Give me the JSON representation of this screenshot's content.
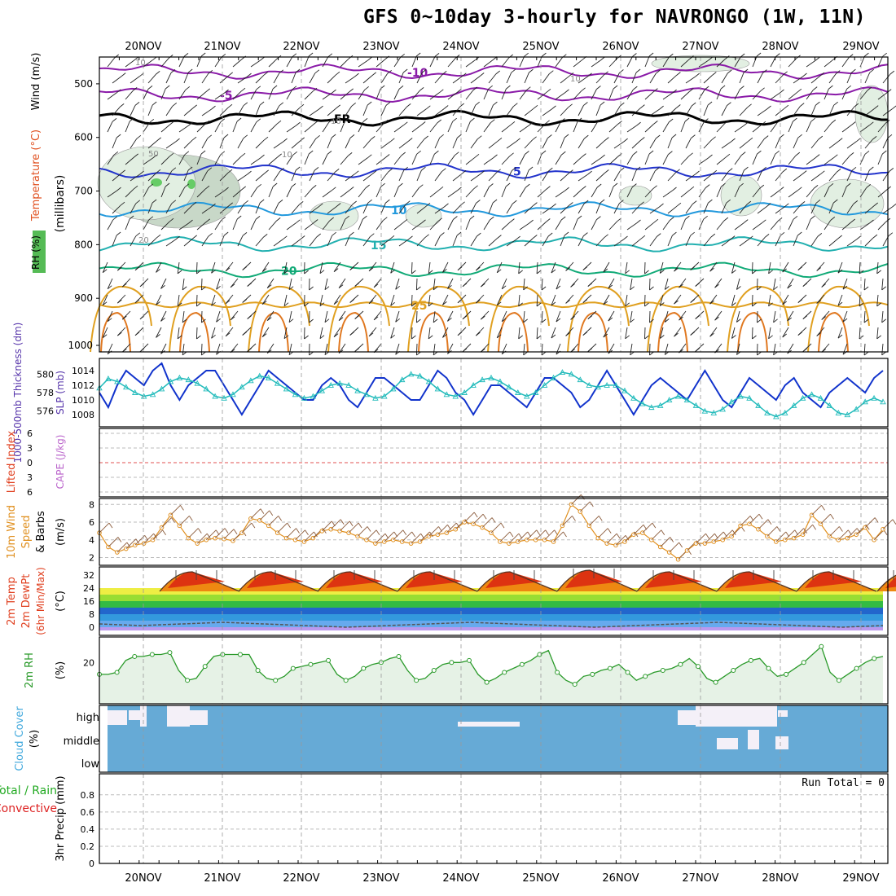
{
  "title": "GFS 0~10day 3-hourly for NAVRONGO (1W, 11N)",
  "chart_data": [
    {
      "type": "line",
      "panel": "upper-air",
      "days": [
        "20NOV",
        "21NOV",
        "22NOV",
        "23NOV",
        "24NOV",
        "25NOV",
        "26NOV",
        "27NOV",
        "28NOV",
        "29NOV"
      ],
      "ylabel_parts": [
        "Wind (m/s)",
        "Temperature (°C)",
        "RH (%)",
        "(millibars)"
      ],
      "yticks": [
        500,
        600,
        700,
        800,
        900,
        1000
      ],
      "ylim": [
        1000,
        450
      ],
      "isotherms": [
        {
          "label": "-10",
          "pressure": 465,
          "color": "#8a1aa8"
        },
        {
          "label": "-5",
          "pressure": 508,
          "color": "#8a1aa8"
        },
        {
          "label": "FR",
          "pressure": 552,
          "color": "#000000"
        },
        {
          "label": "5",
          "pressure": 650,
          "color": "#2233cc"
        },
        {
          "label": "10",
          "pressure": 722,
          "color": "#2299dd"
        },
        {
          "label": "15",
          "pressure": 787,
          "color": "#22b0b0"
        },
        {
          "label": "20",
          "pressure": 835,
          "color": "#11aa77"
        },
        {
          "label": "25",
          "pressure": 900,
          "color": "#e0a020"
        }
      ],
      "rh_labels": [
        "10",
        "50",
        "10",
        "10",
        "10",
        "20"
      ]
    },
    {
      "type": "line",
      "panel": "thickness-slp",
      "ylabel_left": "1000-500mb Thickness (dm)",
      "ylabel_right": "SLP (mb)",
      "left_ticks": [
        576,
        578,
        580
      ],
      "right_ticks": [
        1008,
        1010,
        1012,
        1014
      ],
      "series": [
        {
          "name": "SLP",
          "color": "#1133cc",
          "values": [
            1011,
            1009,
            1012,
            1014,
            1013,
            1012,
            1014,
            1015,
            1012,
            1010,
            1012,
            1013,
            1014,
            1014,
            1012,
            1010,
            1008,
            1010,
            1012,
            1014,
            1013,
            1012,
            1011,
            1010,
            1010,
            1012,
            1013,
            1012,
            1010,
            1009,
            1011,
            1013,
            1013,
            1012,
            1011,
            1010,
            1010,
            1012,
            1014,
            1013,
            1011,
            1010,
            1008,
            1010,
            1012,
            1012,
            1011,
            1010,
            1009,
            1011,
            1013,
            1013,
            1012,
            1011,
            1009,
            1010,
            1012,
            1014,
            1012,
            1010,
            1008,
            1010,
            1012,
            1013,
            1012,
            1011,
            1010,
            1012,
            1014,
            1012,
            1010,
            1009,
            1011,
            1013,
            1012,
            1011,
            1010,
            1012,
            1013,
            1011,
            1010,
            1009,
            1011,
            1012,
            1013,
            1012,
            1011,
            1013,
            1014
          ]
        },
        {
          "name": "Thickness",
          "color": "#22bbbb",
          "values": [
            578.5,
            579.5,
            579.2,
            578.6,
            578.0,
            577.6,
            577.8,
            578.4,
            579.2,
            579.6,
            579.4,
            579.0,
            578.4,
            577.6,
            577.4,
            577.8,
            578.6,
            579.3,
            579.8,
            579.6,
            579.0,
            578.4,
            577.8,
            577.4,
            577.6,
            578.2,
            578.8,
            579.0,
            578.8,
            578.2,
            577.8,
            577.4,
            577.6,
            578.4,
            579.4,
            580.0,
            579.8,
            579.2,
            578.4,
            577.8,
            577.6,
            578.0,
            578.8,
            579.4,
            579.6,
            579.2,
            578.6,
            578.0,
            577.6,
            578.0,
            578.8,
            579.6,
            580.2,
            580.0,
            579.4,
            578.8,
            578.6,
            578.8,
            578.8,
            578.2,
            577.4,
            576.8,
            576.4,
            576.6,
            577.2,
            577.6,
            577.2,
            576.6,
            576.0,
            575.8,
            576.2,
            577.0,
            577.6,
            577.4,
            576.6,
            575.8,
            575.4,
            575.8,
            576.6,
            577.4,
            577.8,
            577.4,
            576.6,
            575.8,
            575.6,
            576.2,
            577.0,
            577.4,
            577.0
          ]
        }
      ]
    },
    {
      "type": "line",
      "panel": "stability",
      "ylabel_left": "Lifted Index",
      "ylabel_right": "CAPE (J/kg)",
      "yticks": [
        -6,
        -3,
        0,
        3,
        6
      ],
      "yticks_labels": [
        "6",
        "3",
        "0",
        "3",
        "6"
      ]
    },
    {
      "type": "line",
      "panel": "wind10m",
      "ylabel": "10m Wind Speed & Barbs (m/s)",
      "yticks": [
        2,
        4,
        6,
        8
      ],
      "series": [
        {
          "name": "10m Wind Speed",
          "color": "#e09020",
          "values": [
            4.8,
            3.2,
            2.6,
            3.0,
            3.4,
            3.6,
            4.0,
            5.4,
            6.8,
            5.6,
            4.2,
            3.6,
            4.0,
            4.2,
            4.1,
            3.9,
            4.8,
            6.4,
            6.2,
            5.6,
            4.8,
            4.2,
            4.0,
            3.8,
            4.2,
            5.0,
            5.2,
            5.0,
            4.8,
            4.4,
            4.0,
            3.6,
            3.8,
            4.0,
            3.8,
            3.6,
            3.8,
            4.4,
            4.6,
            4.8,
            5.2,
            6.0,
            5.8,
            5.4,
            4.8,
            3.8,
            3.6,
            3.8,
            4.0,
            4.0,
            4.0,
            3.8,
            5.6,
            8.0,
            7.2,
            5.6,
            4.2,
            3.6,
            3.4,
            3.8,
            4.6,
            4.8,
            4.0,
            3.2,
            2.6,
            1.8,
            2.8,
            3.6,
            3.6,
            3.8,
            4.0,
            4.4,
            5.6,
            5.8,
            5.2,
            4.4,
            3.8,
            4.0,
            4.2,
            4.6,
            6.8,
            5.8,
            4.4,
            4.0,
            4.2,
            4.6,
            5.4,
            4.0,
            5.2
          ]
        }
      ]
    },
    {
      "type": "area",
      "panel": "temperature",
      "ylabel": "2m Temp 2m DewPt (6hr Min/Max) (°C)",
      "yticks": [
        0,
        8,
        16,
        24,
        32
      ],
      "temp_min": [
        22,
        22,
        22,
        22,
        22,
        22,
        22,
        22,
        22,
        22
      ],
      "temp_max": [
        34,
        34,
        34,
        34,
        34,
        35,
        34,
        34,
        34,
        34
      ],
      "dewpoint": [
        2,
        1,
        2,
        3,
        2,
        1,
        0,
        1,
        2,
        3,
        2,
        1,
        0,
        1,
        2,
        3,
        2,
        1,
        0,
        1
      ]
    },
    {
      "type": "area",
      "panel": "rh2m",
      "ylabel": "2m RH (%)",
      "yticks": [
        20
      ],
      "series": [
        {
          "name": "2m RH",
          "color": "#2a9a2a",
          "values": [
            14,
            14,
            15,
            21,
            23,
            23,
            24,
            24,
            25,
            16,
            11,
            12,
            18,
            23,
            24,
            24,
            24,
            24,
            16,
            12,
            11,
            13,
            17,
            18,
            19,
            20,
            21,
            14,
            11,
            13,
            17,
            19,
            20,
            22,
            23,
            16,
            11,
            12,
            16,
            19,
            20,
            20,
            21,
            14,
            10,
            12,
            15,
            17,
            19,
            21,
            24,
            26,
            15,
            11,
            9,
            13,
            14,
            16,
            17,
            19,
            15,
            11,
            13,
            15,
            16,
            17,
            19,
            22,
            18,
            12,
            10,
            13,
            16,
            19,
            21,
            22,
            17,
            13,
            14,
            17,
            20,
            24,
            28,
            15,
            11,
            14,
            17,
            20,
            22,
            23
          ]
        }
      ]
    },
    {
      "type": "area",
      "panel": "cloud",
      "ylabel": "Cloud Cover (%)",
      "levels": [
        "high",
        "middle",
        "low"
      ]
    },
    {
      "type": "bar",
      "panel": "precip",
      "ylabel": "3hr Precip (mm)",
      "legend": [
        "Total / Rain",
        "Convective"
      ],
      "yticks": [
        "0",
        "0.2",
        "0.4",
        "0.6",
        "0.8"
      ],
      "run_total": "Run Total = 0"
    }
  ],
  "colors": {
    "panel_border": "#000000",
    "grid": "#999999",
    "cloud_fill": "#66aad6",
    "rh_fill": "#e6f2e6",
    "rh_line": "#2a9a2a"
  }
}
